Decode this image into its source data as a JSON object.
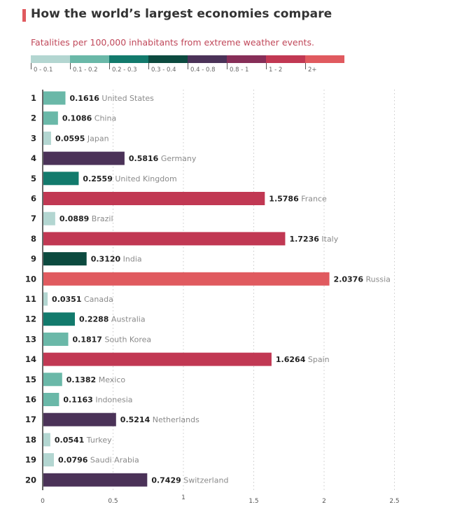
{
  "header": {
    "title": "How the world’s largest economies compare",
    "subtitle": "Fatalities per 100,000 inhabitants from extreme weather events.",
    "accent_color": "#e05a5f"
  },
  "legend": [
    {
      "label": "0 - 0.1",
      "color": "#b3d6d1"
    },
    {
      "label": "0.1 - 0.2",
      "color": "#6ab8a8"
    },
    {
      "label": "0.2 - 0.3",
      "color": "#127a6c"
    },
    {
      "label": "0.3 - 0.4",
      "color": "#0c4a3f"
    },
    {
      "label": "0.4 - 0.8",
      "color": "#4b3258"
    },
    {
      "label": "0.8 - 1",
      "color": "#872e58"
    },
    {
      "label": "1 - 2",
      "color": "#c13853"
    },
    {
      "label": "2+",
      "color": "#e05a5f"
    }
  ],
  "chart_data": {
    "type": "bar",
    "orientation": "horizontal",
    "title": "How the world’s largest economies compare",
    "subtitle": "Fatalities per 100,000 inhabitants from extreme weather events.",
    "ranks": [
      "1",
      "2",
      "3",
      "4",
      "5",
      "6",
      "7",
      "8",
      "9",
      "10",
      "11",
      "12",
      "13",
      "14",
      "15",
      "16",
      "17",
      "18",
      "19",
      "20"
    ],
    "categories": [
      "United States",
      "China",
      "Japan",
      "Germany",
      "United Kingdom",
      "France",
      "Brazil",
      "Italy",
      "India",
      "Russia",
      "Canada",
      "Australia",
      "South Korea",
      "Spain",
      "Mexico",
      "Indonesia",
      "Netherlands",
      "Turkey",
      "Saudi Arabia",
      "Switzerland"
    ],
    "values": [
      0.1616,
      0.1086,
      0.0595,
      0.5816,
      0.2559,
      1.5786,
      0.0889,
      1.7236,
      0.312,
      2.0376,
      0.0351,
      0.2288,
      0.1817,
      1.6264,
      0.1382,
      0.1163,
      0.5214,
      0.0541,
      0.0796,
      0.7429
    ],
    "value_labels": [
      "0.1616",
      "0.1086",
      "0.0595",
      "0.5816",
      "0.2559",
      "1.5786",
      "0.0889",
      "1.7236",
      "0.3120",
      "2.0376",
      "0.0351",
      "0.2288",
      "0.1817",
      "1.6264",
      "0.1382",
      "0.1163",
      "0.5214",
      "0.0541",
      "0.0796",
      "0.7429"
    ],
    "xlim": [
      0,
      2.5
    ],
    "xticks": [
      "0",
      "0.5",
      "1",
      "1.5",
      "2",
      "2.5"
    ],
    "grid": "vertical dotted",
    "legend_position": "top",
    "xlabel": "",
    "ylabel": ""
  }
}
